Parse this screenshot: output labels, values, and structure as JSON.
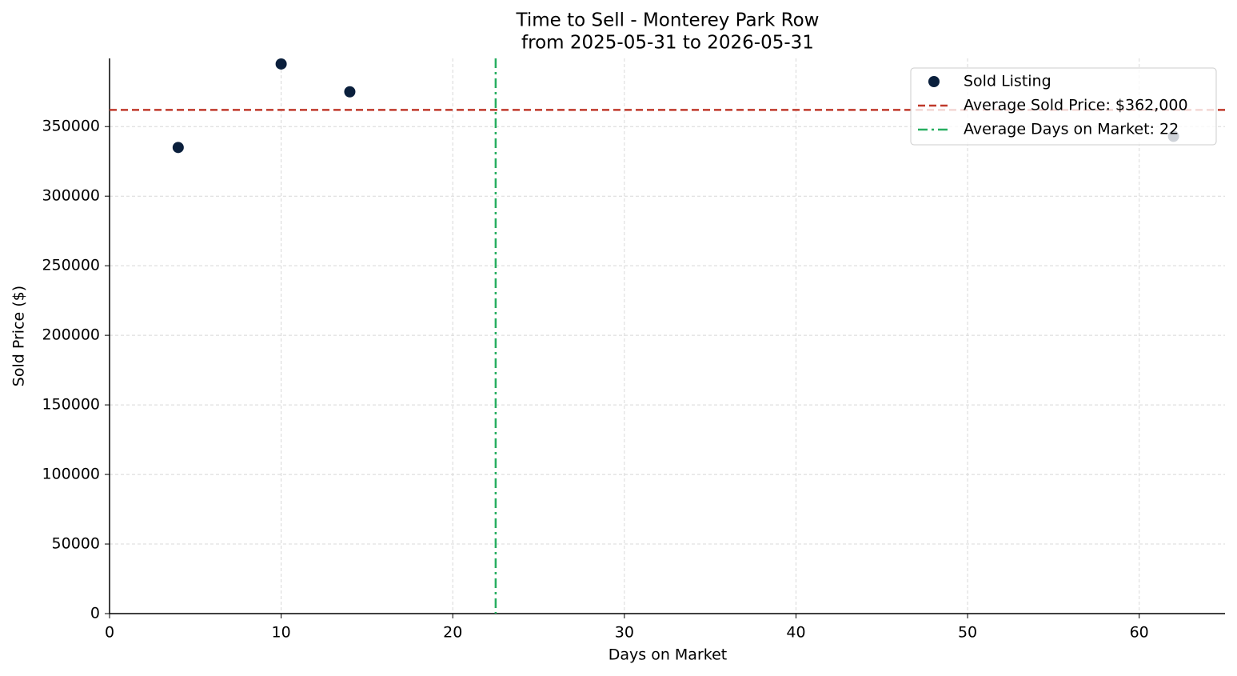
{
  "chart_data": {
    "type": "scatter",
    "title": "Time to Sell - Monterey Park Row",
    "subtitle": "from 2025-05-31 to 2026-05-31",
    "x_label": "Days on Market",
    "y_label": "Sold Price ($)",
    "series": [
      {
        "name": "Sold Listing",
        "color": "#0a1f3c",
        "x": [
          4,
          10,
          14,
          62
        ],
        "values": [
          335000,
          395000,
          375000,
          343000
        ]
      }
    ],
    "reference_lines": [
      {
        "name": "Average Sold Price: $362,000",
        "axis": "y",
        "value": 362000,
        "color": "#c0392b",
        "style": "dashed"
      },
      {
        "name": "Average Days on Market: 22",
        "axis": "x",
        "value": 22.5,
        "color": "#27ae60",
        "style": "dashdot"
      }
    ],
    "xlim": [
      0,
      65
    ],
    "xticks": [
      0,
      10,
      20,
      30,
      40,
      50,
      60
    ],
    "ylim": [
      0,
      399000
    ],
    "yticks": [
      0,
      50000,
      100000,
      150000,
      200000,
      250000,
      300000,
      350000
    ],
    "grid": true,
    "legend": "upper right"
  }
}
